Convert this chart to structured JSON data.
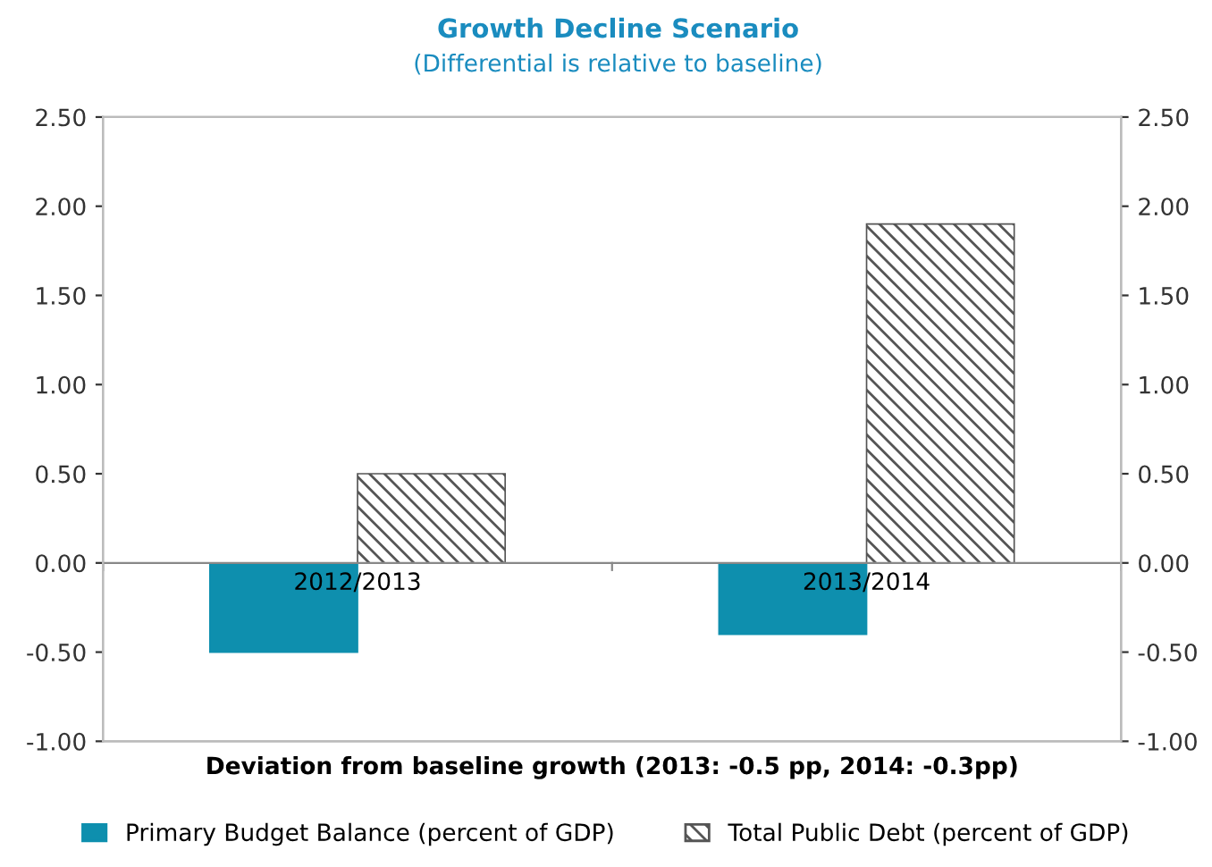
{
  "chart_data": {
    "type": "bar",
    "title": "Growth Decline Scenario",
    "subtitle": "(Differential is relative to baseline)",
    "xlabel": "Deviation from baseline growth (2013: -0.5 pp, 2014: -0.3pp)",
    "categories": [
      "2012/2013",
      "2013/2014"
    ],
    "series": [
      {
        "name": "Primary Budget Balance (percent of GDP)",
        "color": "#0e8fae",
        "values": [
          -0.5,
          -0.4
        ]
      },
      {
        "name": "Total Public Debt (percent of GDP)",
        "color": "#555555",
        "values": [
          0.5,
          1.9
        ]
      }
    ],
    "ylim": [
      -1,
      2.5
    ],
    "yticks": [
      {
        "value": -1,
        "label": "-1.00"
      },
      {
        "value": -0.5,
        "label": "-0.50"
      },
      {
        "value": 0,
        "label": "0.00"
      },
      {
        "value": 0.5,
        "label": "0.50"
      },
      {
        "value": 1,
        "label": "1.00"
      },
      {
        "value": 1.5,
        "label": "1.50"
      },
      {
        "value": 2,
        "label": "2.00"
      },
      {
        "value": 2.5,
        "label": "2.50"
      }
    ],
    "y2lim": [
      -1,
      2.5
    ],
    "y2ticks": [
      {
        "value": -1,
        "label": "-1.00"
      },
      {
        "value": -0.5,
        "label": "-0.50"
      },
      {
        "value": 0,
        "label": "0.00"
      },
      {
        "value": 0.5,
        "label": "0.50"
      },
      {
        "value": 1,
        "label": "1.00"
      },
      {
        "value": 1.5,
        "label": "1.50"
      },
      {
        "value": 2,
        "label": "2.00"
      },
      {
        "value": 2.5,
        "label": "2.50"
      }
    ],
    "grid": false,
    "legend": "bottom"
  }
}
